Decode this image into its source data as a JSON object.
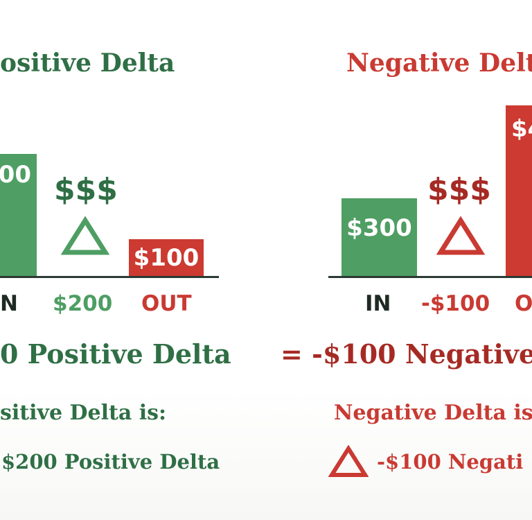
{
  "left": {
    "title": "ositive Delta",
    "in_bar_label": "00",
    "out_bar_label": "$100",
    "dollars": "$$$",
    "in_label": "N",
    "delta_label": "$200",
    "out_label": "OUT",
    "equation": "0 Positive Delta",
    "note": "sitive Delta is:",
    "result": "$200 Positive Delta",
    "color": "#2f6f45"
  },
  "right": {
    "title": "Negative Delt",
    "in_bar_label": "$300",
    "out_bar_label": "$4",
    "dollars": "$$$",
    "in_label": "IN",
    "delta_label": "-$100",
    "out_label": "O",
    "equation": "= -$100 Negative",
    "note": "Negative Delta is",
    "result": "-$100 Negati",
    "color": "#c93a32"
  },
  "icons": {
    "left_triangle": "triangle-outline-icon",
    "right_triangle": "triangle-outline-icon",
    "bottom_triangle": "triangle-outline-icon"
  }
}
